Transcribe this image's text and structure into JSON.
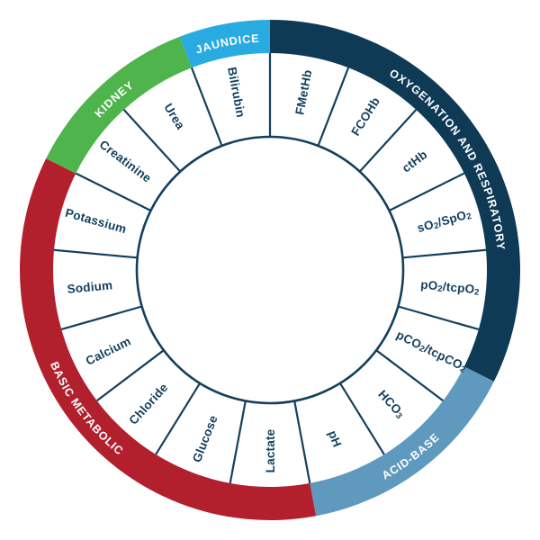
{
  "wheel": {
    "aria_label": "Parameter wheel diagram",
    "colors": {
      "background": "#ffffff",
      "navy_band": "#0E3A56",
      "line_navy": "#12405E",
      "label_navy": "#12405E",
      "category_text": "#ffffff",
      "light_blue": "#29ABE2",
      "green": "#4EB44B",
      "red": "#B2202E",
      "steel_blue": "#5F99BD"
    },
    "categories": [
      {
        "id": "oxygenation-and-respiratory",
        "label": "OXYGENATION AND RESPIRATORY",
        "color": "#0E3A56",
        "start_deg": 0,
        "end_deg": 116.47,
        "label_flipped": false
      },
      {
        "id": "acid-base",
        "label": "ACID-BASE",
        "color": "#5F99BD",
        "start_deg": 116.47,
        "end_deg": 169.41,
        "label_flipped": true
      },
      {
        "id": "basic-metabolic",
        "label": "BASIC METABOLIC",
        "color": "#B2202E",
        "start_deg": 169.41,
        "end_deg": 296.47,
        "label_flipped": true
      },
      {
        "id": "kidney",
        "label": "KIDNEY",
        "color": "#4EB44B",
        "start_deg": 296.47,
        "end_deg": 338.82,
        "label_flipped": false
      },
      {
        "id": "jaundice",
        "label": "JAUNDICE",
        "color": "#29ABE2",
        "start_deg": 338.82,
        "end_deg": 360,
        "label_flipped": false
      }
    ],
    "parameters": [
      {
        "label": "FMetHb",
        "category": "oxygenation-and-respiratory"
      },
      {
        "label": "FCOHb",
        "category": "oxygenation-and-respiratory"
      },
      {
        "label": "ctHb",
        "category": "oxygenation-and-respiratory"
      },
      {
        "label": "sO₂/SpO₂",
        "category": "oxygenation-and-respiratory"
      },
      {
        "label": "pO₂/tcpO₂",
        "category": "oxygenation-and-respiratory"
      },
      {
        "label": "pCO₂/tcpCO₂",
        "category": "oxygenation-and-respiratory / acid-base"
      },
      {
        "label": "HCO₃",
        "category": "acid-base"
      },
      {
        "label": "pH",
        "category": "acid-base"
      },
      {
        "label": "Lactate",
        "category": "basic-metabolic"
      },
      {
        "label": "Glucose",
        "category": "basic-metabolic"
      },
      {
        "label": "Chloride",
        "category": "basic-metabolic"
      },
      {
        "label": "Calcium",
        "category": "basic-metabolic"
      },
      {
        "label": "Sodium",
        "category": "basic-metabolic"
      },
      {
        "label": "Potassium",
        "category": "basic-metabolic"
      },
      {
        "label": "Creatinine",
        "category": "kidney"
      },
      {
        "label": "Urea",
        "category": "kidney"
      },
      {
        "label": "Bilirubin",
        "category": "jaundice"
      }
    ]
  }
}
